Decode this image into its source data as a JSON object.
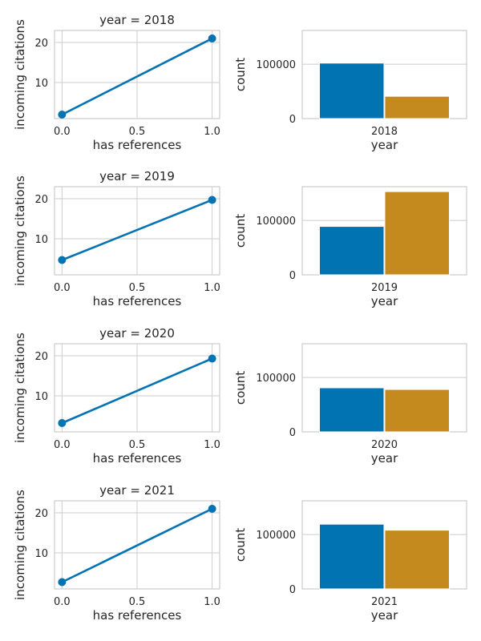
{
  "colors": {
    "blue": "#0173b2",
    "orange": "#c48a1e",
    "grid": "#cccccc"
  },
  "chart_data": [
    {
      "type": "line",
      "title": "year = 2018",
      "xlabel": "has references",
      "ylabel": "incoming citations",
      "x": [
        0.0,
        1.0
      ],
      "y": [
        2.0,
        21.0
      ],
      "xlim": [
        -0.05,
        1.05
      ],
      "ylim": [
        1,
        23
      ],
      "xticks": [
        "0.0",
        "0.5",
        "1.0"
      ],
      "yticks": [
        "10",
        "20"
      ],
      "grid": true
    },
    {
      "type": "bar",
      "xlabel": "year",
      "ylabel": "count",
      "categories": [
        "2018"
      ],
      "series": [
        {
          "values": [
            102000
          ]
        },
        {
          "values": [
            41000
          ]
        }
      ],
      "ylim": [
        0,
        162000
      ],
      "yticks": [
        "0",
        "100000"
      ],
      "grid": true
    },
    {
      "type": "line",
      "title": "year = 2019",
      "xlabel": "has references",
      "ylabel": "incoming citations",
      "x": [
        0.0,
        1.0
      ],
      "y": [
        4.7,
        19.7
      ],
      "xlim": [
        -0.05,
        1.05
      ],
      "ylim": [
        1,
        23
      ],
      "xticks": [
        "0.0",
        "0.5",
        "1.0"
      ],
      "yticks": [
        "10",
        "20"
      ],
      "grid": true
    },
    {
      "type": "bar",
      "xlabel": "year",
      "ylabel": "count",
      "categories": [
        "2019"
      ],
      "series": [
        {
          "values": [
            89000
          ]
        },
        {
          "values": [
            153000
          ]
        }
      ],
      "ylim": [
        0,
        162000
      ],
      "yticks": [
        "0",
        "100000"
      ],
      "grid": true
    },
    {
      "type": "line",
      "title": "year = 2020",
      "xlabel": "has references",
      "ylabel": "incoming citations",
      "x": [
        0.0,
        1.0
      ],
      "y": [
        3.2,
        19.3
      ],
      "xlim": [
        -0.05,
        1.05
      ],
      "ylim": [
        1,
        23
      ],
      "xticks": [
        "0.0",
        "0.5",
        "1.0"
      ],
      "yticks": [
        "10",
        "20"
      ],
      "grid": true
    },
    {
      "type": "bar",
      "xlabel": "year",
      "ylabel": "count",
      "categories": [
        "2020"
      ],
      "series": [
        {
          "values": [
            81000
          ]
        },
        {
          "values": [
            78000
          ]
        }
      ],
      "ylim": [
        0,
        162000
      ],
      "yticks": [
        "0",
        "100000"
      ],
      "grid": true
    },
    {
      "type": "line",
      "title": "year = 2021",
      "xlabel": "has references",
      "ylabel": "incoming citations",
      "x": [
        0.0,
        1.0
      ],
      "y": [
        2.7,
        21.0
      ],
      "xlim": [
        -0.05,
        1.05
      ],
      "ylim": [
        1,
        23
      ],
      "xticks": [
        "0.0",
        "0.5",
        "1.0"
      ],
      "yticks": [
        "10",
        "20"
      ],
      "grid": true
    },
    {
      "type": "bar",
      "xlabel": "year",
      "ylabel": "count",
      "categories": [
        "2021"
      ],
      "series": [
        {
          "values": [
            119000
          ]
        },
        {
          "values": [
            108000
          ]
        }
      ],
      "ylim": [
        0,
        162000
      ],
      "yticks": [
        "0",
        "100000"
      ],
      "grid": true
    }
  ]
}
